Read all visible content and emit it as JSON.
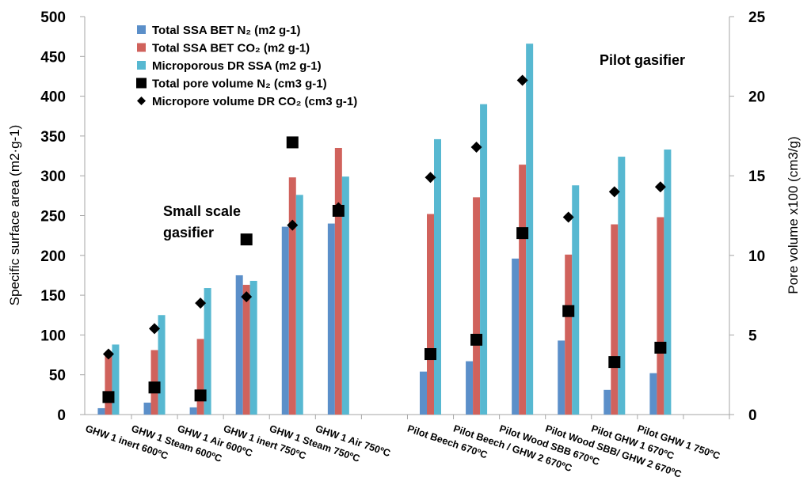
{
  "chart_data": {
    "type": "bar",
    "title": "",
    "xlabel": "",
    "ylabel": "Specific surface area (m2·g-1)",
    "y2label": "Pore volume x100 (cm3/g)",
    "ylim": [
      0,
      500
    ],
    "y2lim": [
      0,
      25
    ],
    "yticks": [
      "0",
      "50",
      "100",
      "150",
      "200",
      "250",
      "300",
      "350",
      "400",
      "450",
      "500"
    ],
    "y2ticks": [
      "0",
      "5",
      "10",
      "15",
      "20",
      "25"
    ],
    "grid": false,
    "legend_position": "top-left",
    "categories": [
      "GHW 1 inert 600ºC",
      "GHW 1 Steam 600ºC",
      "GHW 1 Air 600ºC",
      "GHW 1 inert 750ºC",
      "GHW 1 Steam 750ºC",
      "GHW 1 Air 750ºC",
      "",
      "Pilot Beech 670ºC",
      "Pilot Beech / GHW 2 670ºC",
      "Pilot Wood SBB  670ºC",
      "Pilot Wood SBB/ GHW 2  670ºC",
      "Pilot GHW 1 670ºC",
      "Pilot GHW 1 750ºC"
    ],
    "series": [
      {
        "name": "Total SSA BET N₂ (m2 g-1)",
        "kind": "bar",
        "axis": "left",
        "color": "#5b8fc9",
        "values": [
          8,
          15,
          9,
          175,
          236,
          240,
          null,
          54,
          67,
          196,
          93,
          31,
          52
        ]
      },
      {
        "name": "Total SSA BET CO₂ (m2 g-1)",
        "kind": "bar",
        "axis": "left",
        "color": "#d0625c",
        "values": [
          77,
          81,
          95,
          163,
          298,
          335,
          null,
          252,
          273,
          314,
          201,
          239,
          248
        ]
      },
      {
        "name": "Microporous DR SSA (m2 g-1)",
        "kind": "bar",
        "axis": "left",
        "color": "#57b8d1",
        "values": [
          88,
          125,
          159,
          168,
          276,
          299,
          null,
          346,
          390,
          466,
          288,
          324,
          333
        ]
      },
      {
        "name": "Total pore volume N₂ (cm3 g-1)",
        "kind": "marker-square",
        "axis": "right",
        "color": "#000000",
        "values": [
          1.1,
          1.7,
          1.2,
          11.0,
          17.1,
          12.8,
          null,
          3.8,
          4.7,
          11.4,
          6.5,
          3.3,
          4.2
        ]
      },
      {
        "name": "Micropore volume DR CO₂ (cm3 g-1)",
        "kind": "marker-diamond",
        "axis": "right",
        "color": "#000000",
        "values": [
          3.8,
          5.4,
          7.0,
          7.4,
          11.9,
          13.0,
          null,
          14.9,
          16.8,
          21.0,
          12.4,
          14.0,
          14.3
        ]
      }
    ],
    "annotations": [
      {
        "text": "Small scale",
        "near": "GHW 1 Air 600ºC"
      },
      {
        "text": "gasifier",
        "near": "GHW 1 Air 600ºC"
      },
      {
        "text": "Pilot  gasifier",
        "near": "Pilot Wood SBB/ GHW 2  670ºC"
      }
    ]
  }
}
